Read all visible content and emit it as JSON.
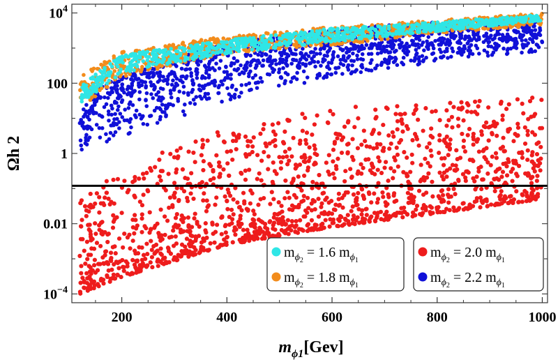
{
  "chart_data": {
    "type": "scatter",
    "title": "",
    "xlabel": {
      "main": "m",
      "sub": "ϕ1",
      "unit": "[Gev]"
    },
    "ylabel": "Ωh 2",
    "xlim": [
      105,
      1010
    ],
    "ylim_log10": [
      -4.25,
      4.25
    ],
    "yscale": "log",
    "x_ticks": [
      200,
      400,
      600,
      800,
      1000
    ],
    "x_tick_labels": [
      "200",
      "400",
      "600",
      "800",
      "1000"
    ],
    "y_ticks": [
      {
        "value": 0.0001,
        "base": "10",
        "exp": "−4"
      },
      {
        "value": 0.01,
        "label": "0.01"
      },
      {
        "value": 1,
        "label": "1"
      },
      {
        "value": 100,
        "label": "100"
      },
      {
        "value": 10000,
        "base": "10",
        "exp": "4"
      }
    ],
    "reference_line": {
      "y": 0.12,
      "color": "#000000",
      "note": "horizontal black line (relic density)"
    },
    "x_range_of_points": [
      120,
      1000
    ],
    "series": [
      {
        "name": "mϕ2 = 1.6 mϕ1",
        "label": {
          "m": "m",
          "sub": "ϕ",
          "subsub": "2",
          "eq": "= 1.6 m",
          "sub2": "ϕ",
          "subsub2": "1"
        },
        "color": "#2fe6e6",
        "band_low": [
          [
            120,
            25
          ],
          [
            200,
            200
          ],
          [
            400,
            700
          ],
          [
            600,
            1500
          ],
          [
            800,
            3000
          ],
          [
            1000,
            6000
          ]
        ],
        "band_high": [
          [
            120,
            80
          ],
          [
            200,
            650
          ],
          [
            400,
            1700
          ],
          [
            600,
            3600
          ],
          [
            800,
            5500
          ],
          [
            1000,
            9000
          ]
        ],
        "count": 900
      },
      {
        "name": "mϕ2 = 1.8 mϕ1",
        "label": {
          "m": "m",
          "sub": "ϕ",
          "subsub": "2",
          "eq": "= 1.8 m",
          "sub2": "ϕ",
          "subsub2": "1"
        },
        "color": "#f28c1c",
        "band_low": [
          [
            120,
            20
          ],
          [
            200,
            150
          ],
          [
            400,
            700
          ],
          [
            600,
            1200
          ],
          [
            800,
            2600
          ],
          [
            1000,
            4500
          ]
        ],
        "band_high": [
          [
            120,
            200
          ],
          [
            200,
            800
          ],
          [
            400,
            2200
          ],
          [
            600,
            4000
          ],
          [
            800,
            6200
          ],
          [
            1000,
            10000
          ]
        ],
        "count": 850
      },
      {
        "name": "mϕ2 = 2.0 mϕ1",
        "label": {
          "m": "m",
          "sub": "ϕ",
          "subsub": "2",
          "eq": "= 2.0 m",
          "sub2": "ϕ",
          "subsub2": "1"
        },
        "color": "#ee1c1c",
        "band_low": [
          [
            120,
            0.0001
          ],
          [
            200,
            0.0003
          ],
          [
            400,
            0.0025
          ],
          [
            600,
            0.008
          ],
          [
            800,
            0.02
          ],
          [
            1000,
            0.05
          ]
        ],
        "band_high": [
          [
            120,
            0.05
          ],
          [
            200,
            0.4
          ],
          [
            400,
            5
          ],
          [
            600,
            20
          ],
          [
            800,
            30
          ],
          [
            1000,
            40
          ]
        ],
        "count": 1500
      },
      {
        "name": "mϕ2 = 2.2 mϕ1",
        "label": {
          "m": "m",
          "sub": "ϕ",
          "subsub": "2",
          "eq": "= 2.2 m",
          "sub2": "ϕ",
          "subsub2": "1"
        },
        "color": "#1010d8",
        "band_low": [
          [
            120,
            1
          ],
          [
            200,
            3
          ],
          [
            400,
            30
          ],
          [
            600,
            150
          ],
          [
            800,
            400
          ],
          [
            1000,
            800
          ]
        ],
        "band_high": [
          [
            120,
            30
          ],
          [
            200,
            200
          ],
          [
            400,
            1500
          ],
          [
            600,
            3500
          ],
          [
            800,
            5500
          ],
          [
            1000,
            8000
          ]
        ],
        "count": 1500
      }
    ],
    "legends": [
      {
        "position": "bottom-center",
        "series": [
          0,
          1
        ]
      },
      {
        "position": "bottom-right",
        "series": [
          2,
          3
        ]
      }
    ]
  }
}
